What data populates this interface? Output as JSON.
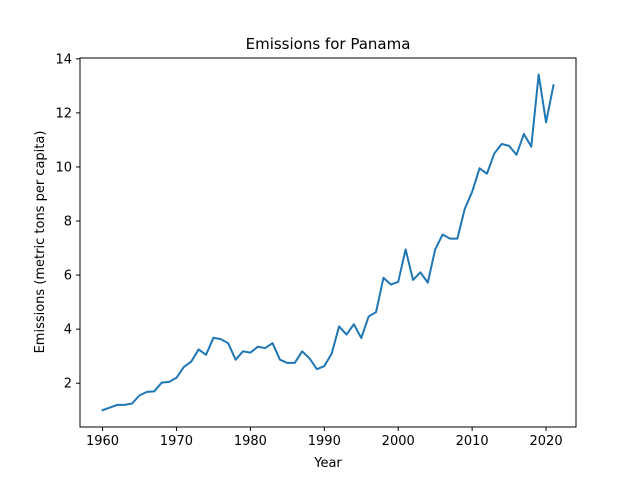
{
  "chart_data": {
    "type": "line",
    "title": "Emissions for Panama",
    "xlabel": "Year",
    "ylabel": "Emissions (metric tons per capita)",
    "xlim": [
      1956.95,
      2024.05
    ],
    "ylim": [
      0.38,
      14.03
    ],
    "x_ticks": [
      1960,
      1970,
      1980,
      1990,
      2000,
      2010,
      2020
    ],
    "y_ticks": [
      2,
      4,
      6,
      8,
      10,
      12,
      14
    ],
    "grid": false,
    "color": "#1f77b4",
    "series": [
      {
        "name": "Panama",
        "x": [
          1960,
          1961,
          1962,
          1963,
          1964,
          1965,
          1966,
          1967,
          1968,
          1969,
          1970,
          1971,
          1972,
          1973,
          1974,
          1975,
          1976,
          1977,
          1978,
          1979,
          1980,
          1981,
          1982,
          1983,
          1984,
          1985,
          1986,
          1987,
          1988,
          1989,
          1990,
          1991,
          1992,
          1993,
          1994,
          1995,
          1996,
          1997,
          1998,
          1999,
          2000,
          2001,
          2002,
          2003,
          2004,
          2005,
          2006,
          2007,
          2008,
          2009,
          2010,
          2011,
          2012,
          2013,
          2014,
          2015,
          2016,
          2017,
          2018,
          2019,
          2020,
          2021
        ],
        "values": [
          1.0,
          1.1,
          1.2,
          1.2,
          1.25,
          1.55,
          1.68,
          1.7,
          2.02,
          2.05,
          2.2,
          2.6,
          2.8,
          3.25,
          3.05,
          3.68,
          3.63,
          3.48,
          2.87,
          3.18,
          3.13,
          3.35,
          3.3,
          3.48,
          2.87,
          2.75,
          2.75,
          3.18,
          2.92,
          2.52,
          2.63,
          3.1,
          4.1,
          3.8,
          4.18,
          3.67,
          4.47,
          4.63,
          5.9,
          5.65,
          5.75,
          6.95,
          5.82,
          6.1,
          5.72,
          6.95,
          7.5,
          7.35,
          7.35,
          8.45,
          9.08,
          9.95,
          9.75,
          10.5,
          10.85,
          10.78,
          10.45,
          11.22,
          10.75,
          13.42,
          11.65,
          13.02
        ]
      }
    ]
  }
}
